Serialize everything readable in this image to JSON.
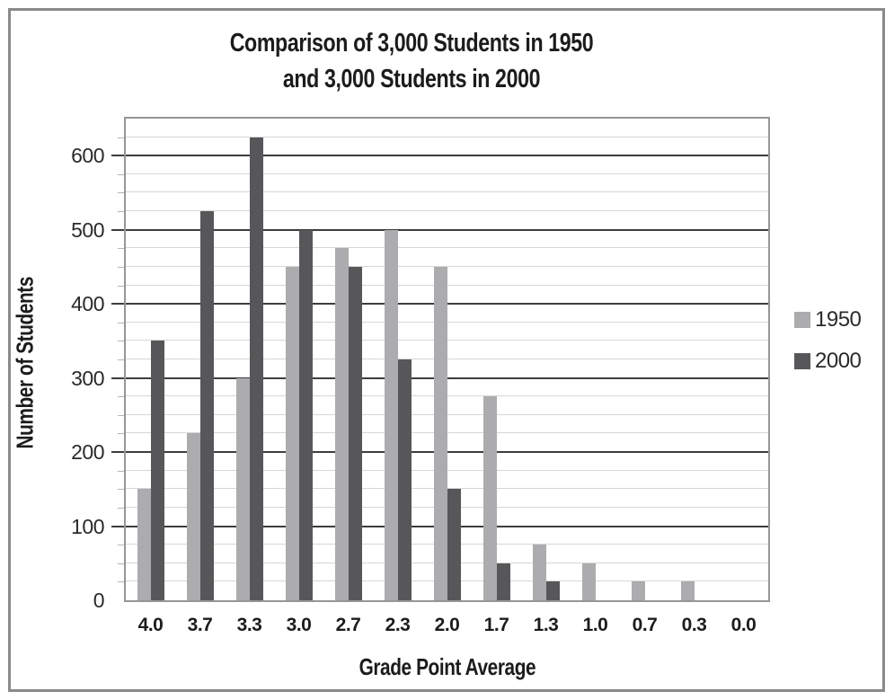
{
  "figure": {
    "title_lines": [
      "Comparison of 3,000 Students in 1950",
      "and 3,000 Students in 2000"
    ]
  },
  "chart_data": {
    "type": "bar",
    "title": "Comparison of 3,000 Students in 1950 and 3,000 Students in 2000",
    "xlabel": "Grade Point Average",
    "ylabel": "Number of Students",
    "categories": [
      "4.0",
      "3.7",
      "3.3",
      "3.0",
      "2.7",
      "2.3",
      "2.0",
      "1.7",
      "1.3",
      "1.0",
      "0.7",
      "0.3",
      "0.0"
    ],
    "series": [
      {
        "name": "1950",
        "color": "#acacae",
        "values": [
          150,
          225,
          300,
          450,
          475,
          500,
          450,
          275,
          75,
          50,
          25,
          25,
          0
        ]
      },
      {
        "name": "2000",
        "color": "#57575a",
        "values": [
          350,
          525,
          625,
          500,
          450,
          325,
          150,
          50,
          25,
          0,
          0,
          0,
          0
        ]
      }
    ],
    "ylim": [
      0,
      650
    ],
    "ytick_step": 100,
    "yminor_step": 25,
    "ytick_labels": [
      "0",
      "100",
      "200",
      "300",
      "400",
      "500",
      "600"
    ],
    "grid": true,
    "legend_position": "right",
    "colors": {
      "major_gridline": "#3d3d3f",
      "minor_gridline": "#d6d6d6",
      "plot_border": "#96969a",
      "outer_border": "#8a8a8c",
      "text": "#1c1c1c"
    }
  }
}
